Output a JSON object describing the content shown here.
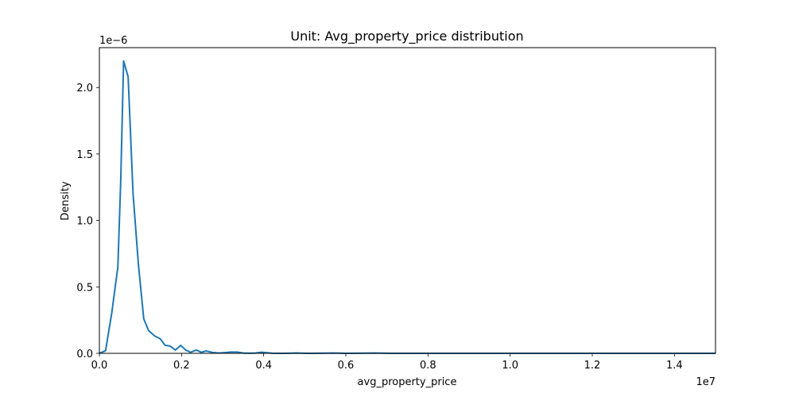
{
  "chart_data": {
    "type": "line",
    "title": "Unit: Avg_property_price distribution",
    "xlabel": "avg_property_price",
    "ylabel": "Density",
    "x_offset_text": "1e7",
    "y_offset_text": "1e−6",
    "xlim": [
      0,
      15000000
    ],
    "ylim": [
      0,
      2.3e-06
    ],
    "x_ticks": [
      0,
      2000000,
      4000000,
      6000000,
      8000000,
      10000000,
      12000000,
      14000000
    ],
    "x_tick_labels": [
      "0.0",
      "0.2",
      "0.4",
      "0.6",
      "0.8",
      "1.0",
      "1.2",
      "1.4"
    ],
    "y_ticks": [
      0,
      5e-07,
      1e-06,
      1.5e-06,
      2e-06
    ],
    "y_tick_labels": [
      "0.0",
      "0.5",
      "1.0",
      "1.5",
      "2.0"
    ],
    "grid": false,
    "series": [
      {
        "color": "#1f77b4",
        "x": [
          0,
          150000,
          300000,
          450000,
          520000,
          590000,
          700000,
          820000,
          950000,
          1080000,
          1200000,
          1350000,
          1480000,
          1600000,
          1720000,
          1850000,
          1980000,
          2100000,
          2220000,
          2360000,
          2480000,
          2600000,
          2750000,
          2900000,
          3050000,
          3200000,
          3350000,
          3500000,
          3650000,
          3800000,
          3950000,
          4200000,
          4500000,
          4800000,
          5100000,
          5400000,
          5700000,
          6000000,
          6300000,
          6700000,
          7100000,
          7500000,
          8000000,
          9000000,
          10000000,
          11000000,
          12000000,
          13000000,
          14000000,
          15000000
        ],
        "values": [
          0,
          2e-08,
          3e-07,
          6.5e-07,
          1.3e-06,
          2.2e-06,
          2.08e-06,
          1.2e-06,
          6.7e-07,
          2.6e-07,
          1.7e-07,
          1.3e-07,
          1.1e-07,
          6e-08,
          5.5e-08,
          2.5e-08,
          6e-08,
          2.5e-08,
          8e-09,
          2.5e-08,
          8e-09,
          1.8e-08,
          7e-09,
          2e-09,
          5e-09,
          1e-08,
          1e-08,
          2e-09,
          1e-09,
          2e-09,
          8e-09,
          1e-09,
          0,
          2e-09,
          0,
          1e-09,
          2e-09,
          0,
          1e-09,
          2e-09,
          0,
          0,
          0,
          0,
          0,
          0,
          0,
          0,
          0,
          0
        ]
      }
    ]
  }
}
